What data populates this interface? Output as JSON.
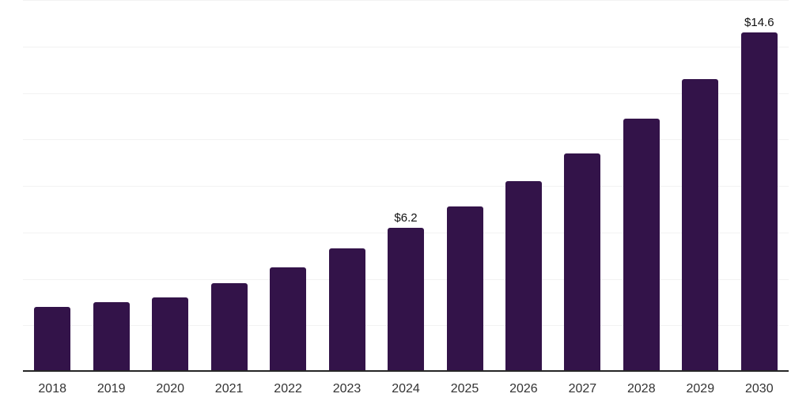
{
  "chart_data": {
    "type": "bar",
    "title": "",
    "xlabel": "",
    "ylabel": "",
    "categories": [
      "2018",
      "2019",
      "2020",
      "2021",
      "2022",
      "2023",
      "2024",
      "2025",
      "2026",
      "2027",
      "2028",
      "2029",
      "2030"
    ],
    "values": [
      2.8,
      3.0,
      3.2,
      3.8,
      4.5,
      5.3,
      6.2,
      7.1,
      8.2,
      9.4,
      10.9,
      12.6,
      14.6
    ],
    "point_labels": {
      "2024": "$6.2",
      "2030": "$14.6"
    },
    "ylim": [
      0,
      16
    ],
    "gridline_values": [
      2,
      4,
      6,
      8,
      10,
      12,
      14,
      16
    ],
    "grid": "horizontal",
    "legend": "none",
    "y_axis_tick_labels_visible": false,
    "colors": {
      "bar": "#331349",
      "grid": "#f2f2f2",
      "axis": "#262626",
      "point_label": "#111111",
      "tick_label": "#333333",
      "background": "#ffffff"
    }
  }
}
